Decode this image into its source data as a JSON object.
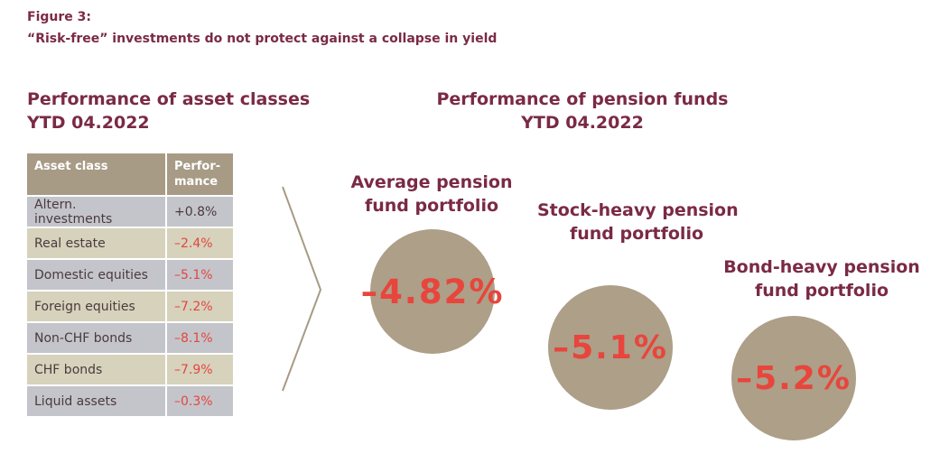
{
  "figure": {
    "label": "Figure 3:",
    "title": "“Risk-free” investments do not protect against a collapse in yield"
  },
  "left_panel": {
    "title_line1": "Performance of asset classes",
    "title_line2": "YTD 04.2022"
  },
  "right_panel": {
    "title_line1": "Performance of pension funds",
    "title_line2": "YTD 04.2022"
  },
  "colors": {
    "title": "#7a2a45",
    "header_bg": "#a79b86",
    "row_grey": "#c4c5ca",
    "row_beige": "#d7d2bc",
    "negative": "#e3463f",
    "bubble": "#ad9f88"
  },
  "chart_data": [
    {
      "type": "table",
      "columns": [
        "Asset class",
        "Perfor-\nmance"
      ],
      "rows": [
        {
          "asset_class": "Altern. investments",
          "performance": "+0.8%",
          "value": 0.8,
          "shade": "grey"
        },
        {
          "asset_class": "Real estate",
          "performance": "–2.4%",
          "value": -2.4,
          "shade": "beige"
        },
        {
          "asset_class": "Domestic equities",
          "performance": "–5.1%",
          "value": -5.1,
          "shade": "grey"
        },
        {
          "asset_class": "Foreign equities",
          "performance": "–7.2%",
          "value": -7.2,
          "shade": "beige"
        },
        {
          "asset_class": "Non-CHF bonds",
          "performance": "–8.1%",
          "value": -8.1,
          "shade": "grey"
        },
        {
          "asset_class": "CHF bonds",
          "performance": "–7.9%",
          "value": -7.9,
          "shade": "beige"
        },
        {
          "asset_class": "Liquid assets",
          "performance": "–0.3%",
          "value": -0.3,
          "shade": "grey"
        }
      ]
    },
    {
      "type": "bubble",
      "bubbles": [
        {
          "line1": "Average pension",
          "line2": "fund portfolio",
          "display": "–4.82%",
          "value": -4.82
        },
        {
          "line1": "Stock-heavy pension",
          "line2": "fund portfolio",
          "display": "–5.1%",
          "value": -5.1
        },
        {
          "line1": "Bond-heavy pension",
          "line2": "fund portfolio",
          "display": "–5.2%",
          "value": -5.2
        }
      ]
    }
  ]
}
